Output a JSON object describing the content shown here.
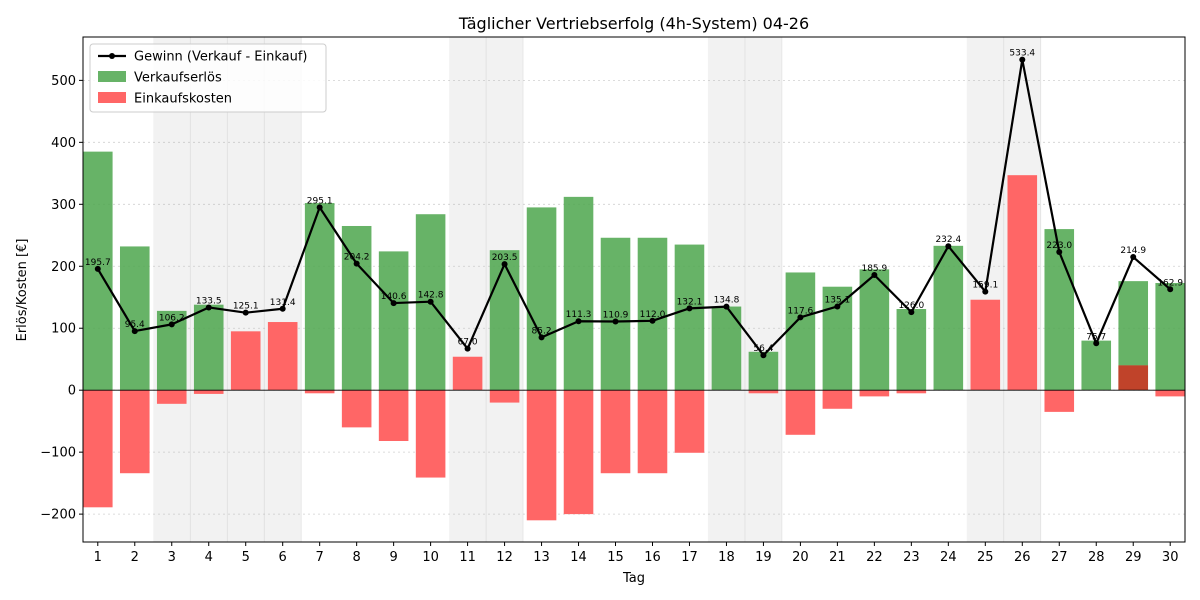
{
  "chart_data": {
    "type": "bar",
    "title": "Täglicher Vertriebserfolg (4h-System) 04-26",
    "xlabel": "Tag",
    "ylabel": "Erlös/Kosten [€]",
    "x": [
      1,
      2,
      3,
      4,
      5,
      6,
      7,
      8,
      9,
      10,
      11,
      12,
      13,
      14,
      15,
      16,
      17,
      18,
      19,
      20,
      21,
      22,
      23,
      24,
      25,
      26,
      27,
      28,
      29,
      30
    ],
    "ylim": [
      -245,
      570
    ],
    "yticks": [
      -200,
      -100,
      0,
      100,
      200,
      300,
      400,
      500
    ],
    "grid": true,
    "legend_position": "top-left",
    "shaded_days": [
      3,
      4,
      5,
      6,
      11,
      12,
      18,
      19,
      25,
      26
    ],
    "series": [
      {
        "name": "Gewinn (Verkauf - Einkauf)",
        "kind": "line",
        "color": "#000000",
        "values": [
          195.7,
          95.4,
          106.2,
          133.5,
          125.1,
          131.4,
          295.1,
          204.2,
          140.6,
          142.8,
          67.0,
          203.5,
          85.2,
          111.3,
          110.9,
          112.0,
          132.1,
          134.8,
          56.4,
          117.6,
          135.1,
          185.9,
          126.0,
          232.4,
          159.1,
          533.4,
          223.0,
          75.7,
          214.9,
          162.9
        ],
        "labels": [
          "195.7",
          "95.4",
          "106.2",
          "133.5",
          "125.1",
          "131.4",
          "295.1",
          "204.2",
          "140.6",
          "142.8",
          "67.0",
          "203.5",
          "85.2",
          "111.3",
          "110.9",
          "112.0",
          "132.1",
          "134.8",
          "56.4",
          "117.6",
          "135.1",
          "185.9",
          "126.0",
          "232.4",
          "159.1",
          "533.4",
          "223.0",
          "75.7",
          "214.9",
          "162.9"
        ]
      },
      {
        "name": "Verkaufserlös",
        "kind": "bar",
        "color": "#4ca64c",
        "values": [
          385,
          232,
          128,
          138,
          0,
          0,
          302,
          265,
          224,
          284,
          0,
          226,
          295,
          312,
          246,
          246,
          235,
          135,
          62,
          190,
          167,
          195,
          131,
          233,
          0,
          0,
          260,
          80,
          176,
          173
        ]
      },
      {
        "name": "Einkaufskosten",
        "kind": "bar",
        "color": "#ff6666",
        "pos_values": [
          0,
          0,
          0,
          0,
          95,
          110,
          0,
          0,
          0,
          0,
          54,
          0,
          0,
          0,
          0,
          0,
          0,
          0,
          0,
          0,
          0,
          0,
          0,
          0,
          146,
          347,
          0,
          0,
          40,
          0
        ],
        "neg_values": [
          -189,
          -134,
          -22,
          -6,
          0,
          0,
          -5,
          -60,
          -82,
          -141,
          0,
          -20,
          -210,
          -200,
          -134,
          -134,
          -101,
          0,
          -5,
          -72,
          -30,
          -10,
          -5,
          0,
          0,
          0,
          -35,
          0,
          0,
          -10
        ]
      }
    ]
  }
}
